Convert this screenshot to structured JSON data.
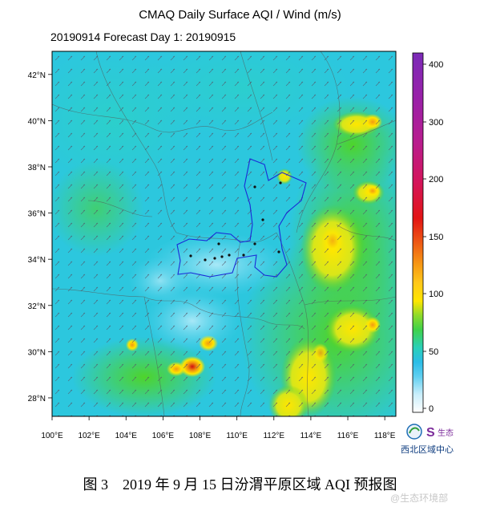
{
  "title": "CMAQ Daily Surface AQI / Wind (m/s)",
  "subtitle": "20190914 Forecast Day 1:  20190915",
  "map": {
    "lat_ticks": [
      "42°N",
      "40°N",
      "38°N",
      "36°N",
      "34°N",
      "32°N",
      "30°N",
      "28°N"
    ],
    "lon_ticks": [
      "100°E",
      "102°E",
      "104°E",
      "106°E",
      "108°E",
      "110°E",
      "112°E",
      "114°E",
      "116°E",
      "118°E"
    ],
    "lat_range": [
      27.2,
      43.0
    ],
    "lon_range": [
      100.0,
      118.6
    ]
  },
  "colorbar": {
    "labels": [
      "400",
      "300",
      "200",
      "150",
      "100",
      "50",
      "0"
    ]
  },
  "logo": {
    "text": "西北区域中心",
    "mark_text": "生态"
  },
  "caption": "图 3　2019 年 9 月 15 日汾渭平原区域 AQI 预报图",
  "watermark": "@生态环境部"
}
